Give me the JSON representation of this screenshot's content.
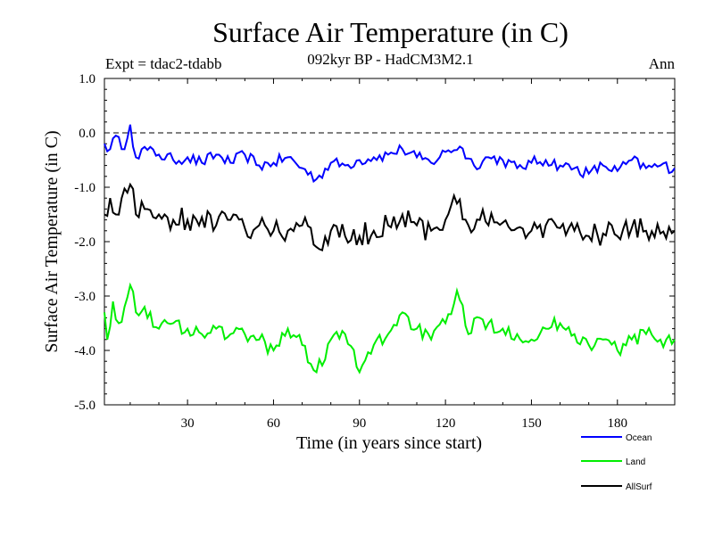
{
  "chart_data": {
    "type": "line",
    "title": "Surface Air Temperature (in C)",
    "subtitle": "092kyr BP - HadCM3M2.1",
    "experiment": "Expt = tdac2-tdabb",
    "period": "Ann",
    "xlabel": "Time (in years since start)",
    "ylabel": "Surface Air Temperature (in C)",
    "xlim": [
      1,
      200
    ],
    "ylim": [
      -5.0,
      1.0
    ],
    "xticks": [
      30,
      60,
      90,
      120,
      150,
      180
    ],
    "yticks": [
      1.0,
      0.0,
      -1.0,
      -2.0,
      -3.0,
      -4.0,
      -5.0
    ],
    "ytick_labels": [
      "1.0",
      "0.0",
      "-1.0",
      "-2.0",
      "-3.0",
      "-4.0",
      "-5.0"
    ],
    "reference_line": 0.0,
    "series": [
      {
        "name": "Ocean",
        "color": "#0000ff",
        "anchors": [
          [
            1,
            -0.2
          ],
          [
            3,
            -0.3
          ],
          [
            5,
            -0.05
          ],
          [
            7,
            -0.3
          ],
          [
            9,
            -0.1
          ],
          [
            10,
            0.15
          ],
          [
            12,
            -0.45
          ],
          [
            14,
            -0.3
          ],
          [
            20,
            -0.4
          ],
          [
            25,
            -0.5
          ],
          [
            30,
            -0.45
          ],
          [
            35,
            -0.55
          ],
          [
            40,
            -0.4
          ],
          [
            45,
            -0.55
          ],
          [
            50,
            -0.4
          ],
          [
            55,
            -0.6
          ],
          [
            60,
            -0.55
          ],
          [
            65,
            -0.45
          ],
          [
            70,
            -0.65
          ],
          [
            75,
            -0.85
          ],
          [
            80,
            -0.55
          ],
          [
            85,
            -0.6
          ],
          [
            90,
            -0.5
          ],
          [
            95,
            -0.45
          ],
          [
            100,
            -0.4
          ],
          [
            105,
            -0.3
          ],
          [
            110,
            -0.45
          ],
          [
            115,
            -0.55
          ],
          [
            120,
            -0.35
          ],
          [
            125,
            -0.25
          ],
          [
            130,
            -0.6
          ],
          [
            135,
            -0.45
          ],
          [
            140,
            -0.5
          ],
          [
            145,
            -0.65
          ],
          [
            150,
            -0.55
          ],
          [
            155,
            -0.5
          ],
          [
            160,
            -0.6
          ],
          [
            165,
            -0.65
          ],
          [
            170,
            -0.75
          ],
          [
            175,
            -0.6
          ],
          [
            180,
            -0.7
          ],
          [
            185,
            -0.5
          ],
          [
            190,
            -0.65
          ],
          [
            195,
            -0.6
          ],
          [
            200,
            -0.65
          ]
        ]
      },
      {
        "name": "Land",
        "color": "#00ee00",
        "anchors": [
          [
            1,
            -3.3
          ],
          [
            2,
            -3.8
          ],
          [
            4,
            -3.1
          ],
          [
            6,
            -3.5
          ],
          [
            8,
            -3.2
          ],
          [
            10,
            -2.8
          ],
          [
            12,
            -3.3
          ],
          [
            15,
            -3.2
          ],
          [
            20,
            -3.6
          ],
          [
            25,
            -3.5
          ],
          [
            30,
            -3.6
          ],
          [
            35,
            -3.7
          ],
          [
            40,
            -3.6
          ],
          [
            45,
            -3.7
          ],
          [
            50,
            -3.7
          ],
          [
            55,
            -3.8
          ],
          [
            60,
            -4.0
          ],
          [
            65,
            -3.6
          ],
          [
            70,
            -3.9
          ],
          [
            75,
            -4.4
          ],
          [
            80,
            -3.8
          ],
          [
            85,
            -3.7
          ],
          [
            90,
            -4.4
          ],
          [
            95,
            -3.9
          ],
          [
            100,
            -3.7
          ],
          [
            105,
            -3.3
          ],
          [
            110,
            -3.6
          ],
          [
            115,
            -3.8
          ],
          [
            120,
            -3.5
          ],
          [
            124,
            -2.9
          ],
          [
            128,
            -3.7
          ],
          [
            132,
            -3.4
          ],
          [
            135,
            -3.5
          ],
          [
            140,
            -3.6
          ],
          [
            145,
            -3.7
          ],
          [
            150,
            -3.8
          ],
          [
            155,
            -3.6
          ],
          [
            160,
            -3.5
          ],
          [
            165,
            -3.7
          ],
          [
            170,
            -3.9
          ],
          [
            175,
            -3.8
          ],
          [
            180,
            -4.0
          ],
          [
            185,
            -3.8
          ],
          [
            190,
            -3.7
          ],
          [
            195,
            -3.8
          ],
          [
            200,
            -3.8
          ]
        ]
      },
      {
        "name": "AllSurf",
        "color": "#000000",
        "anchors": [
          [
            1,
            -1.5
          ],
          [
            3,
            -1.2
          ],
          [
            5,
            -1.5
          ],
          [
            7,
            -1.2
          ],
          [
            9,
            -1.1
          ],
          [
            10,
            -0.95
          ],
          [
            12,
            -1.5
          ],
          [
            15,
            -1.4
          ],
          [
            20,
            -1.5
          ],
          [
            25,
            -1.6
          ],
          [
            30,
            -1.6
          ],
          [
            35,
            -1.55
          ],
          [
            40,
            -1.7
          ],
          [
            45,
            -1.6
          ],
          [
            50,
            -1.75
          ],
          [
            55,
            -1.7
          ],
          [
            60,
            -1.8
          ],
          [
            65,
            -1.8
          ],
          [
            70,
            -1.7
          ],
          [
            75,
            -2.1
          ],
          [
            80,
            -1.8
          ],
          [
            85,
            -1.9
          ],
          [
            90,
            -1.9
          ],
          [
            95,
            -1.8
          ],
          [
            100,
            -1.7
          ],
          [
            105,
            -1.5
          ],
          [
            110,
            -1.7
          ],
          [
            115,
            -1.8
          ],
          [
            120,
            -1.6
          ],
          [
            124,
            -1.3
          ],
          [
            128,
            -1.7
          ],
          [
            132,
            -1.6
          ],
          [
            135,
            -1.7
          ],
          [
            140,
            -1.65
          ],
          [
            145,
            -1.75
          ],
          [
            150,
            -1.8
          ],
          [
            155,
            -1.7
          ],
          [
            160,
            -1.75
          ],
          [
            165,
            -1.8
          ],
          [
            170,
            -1.9
          ],
          [
            175,
            -1.85
          ],
          [
            180,
            -1.9
          ],
          [
            185,
            -1.75
          ],
          [
            190,
            -1.8
          ],
          [
            195,
            -1.85
          ],
          [
            200,
            -1.8
          ]
        ]
      }
    ]
  }
}
